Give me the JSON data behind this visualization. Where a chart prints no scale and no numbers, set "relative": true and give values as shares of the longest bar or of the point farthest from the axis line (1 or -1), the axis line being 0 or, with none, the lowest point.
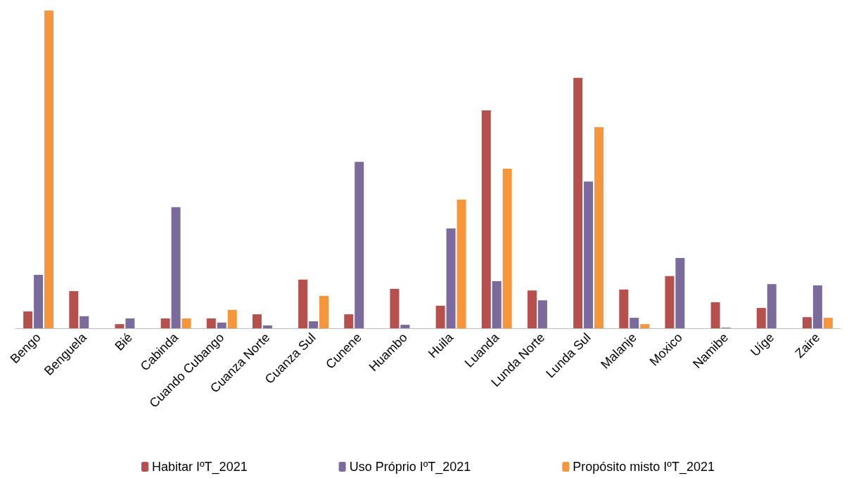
{
  "chart_data": {
    "type": "bar",
    "relative": true,
    "legend": "bottom",
    "categories": [
      "Bengo",
      "Benguela",
      "Bié",
      "Cabinda",
      "Cuando Cubango",
      "Cuanza Norte",
      "Cuanza Sul",
      "Cunene",
      "Huambo",
      "Huila",
      "Luanda",
      "Lunda Norte",
      "Lunda Sul",
      "Malanje",
      "Moxico",
      "Namibe",
      "Uíge",
      "Zaire"
    ],
    "series": [
      {
        "name": "Habitar IºT_2021",
        "color": "#b5504c",
        "values": [
          0.053,
          0.117,
          0.013,
          0.031,
          0.031,
          0.044,
          0.153,
          0.044,
          0.124,
          0.071,
          0.686,
          0.119,
          0.788,
          0.122,
          0.164,
          0.082,
          0.064,
          0.035
        ]
      },
      {
        "name": "Uso Próprio IºT_2021",
        "color": "#7b6a9c",
        "values": [
          0.168,
          0.038,
          0.031,
          0.381,
          0.018,
          0.009,
          0.022,
          0.524,
          0.011,
          0.314,
          0.148,
          0.088,
          0.462,
          0.033,
          0.221,
          0.002,
          0.139,
          0.135
        ]
      },
      {
        "name": "Propósito misto IºT_2021",
        "color": "#f5963c",
        "values": [
          1,
          0,
          0,
          0.031,
          0.058,
          0,
          0.102,
          0,
          0,
          0.405,
          0.502,
          0,
          0.633,
          0.013,
          0,
          0,
          0,
          0.033
        ]
      }
    ]
  }
}
